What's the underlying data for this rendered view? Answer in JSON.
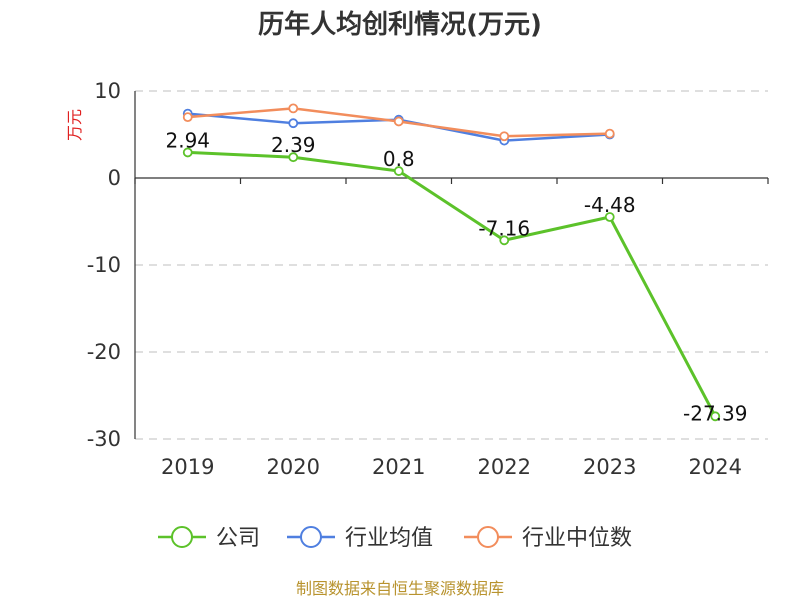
{
  "chart_data": {
    "type": "line",
    "title": "历年人均创利情况(万元)",
    "ylabel": "万元",
    "categories": [
      "2019",
      "2020",
      "2021",
      "2022",
      "2023",
      "2024"
    ],
    "ylim": [
      -30,
      10
    ],
    "yticks": [
      10,
      0,
      -10,
      -20,
      -30
    ],
    "grid": true,
    "legend_position": "bottom",
    "series": [
      {
        "name": "公司",
        "color": "#5cc22a",
        "values": [
          2.94,
          2.39,
          0.8,
          -7.16,
          -4.48,
          -27.39
        ],
        "labels": [
          "2.94",
          "2.39",
          "0.8",
          "-7.16",
          "-4.48",
          "-27.39"
        ]
      },
      {
        "name": "行业均值",
        "color": "#4f7fe0",
        "values": [
          7.4,
          6.3,
          6.7,
          4.3,
          5.0,
          null
        ]
      },
      {
        "name": "行业中位数",
        "color": "#f28d5c",
        "values": [
          7.0,
          8.0,
          6.5,
          4.8,
          5.1,
          null
        ]
      }
    ]
  },
  "footer": {
    "source": "制图数据来自恒生聚源数据库"
  }
}
